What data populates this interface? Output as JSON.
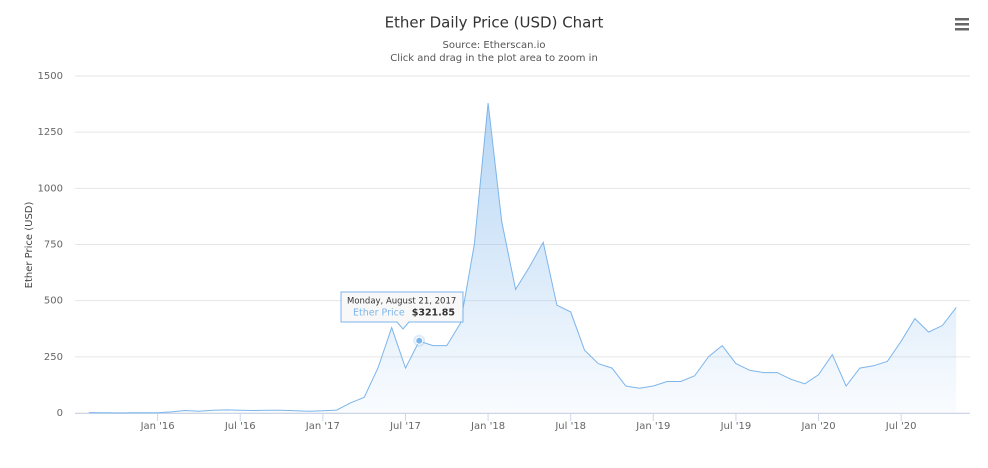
{
  "chart_data": {
    "type": "area",
    "title": "Ether Daily Price (USD) Chart",
    "subtitle": [
      "Source: Etherscan.io",
      "Click and drag in the plot area to zoom in"
    ],
    "y_label": "Ether Price (USD)",
    "x": [
      "2015-08",
      "2015-09",
      "2015-10",
      "2015-11",
      "2015-12",
      "2016-01",
      "2016-02",
      "2016-03",
      "2016-04",
      "2016-05",
      "2016-06",
      "2016-07",
      "2016-08",
      "2016-09",
      "2016-10",
      "2016-11",
      "2016-12",
      "2017-01",
      "2017-02",
      "2017-03",
      "2017-04",
      "2017-05",
      "2017-06",
      "2017-07",
      "2017-08",
      "2017-09",
      "2017-10",
      "2017-11",
      "2017-12",
      "2018-01",
      "2018-02",
      "2018-03",
      "2018-04",
      "2018-05",
      "2018-06",
      "2018-07",
      "2018-08",
      "2018-09",
      "2018-10",
      "2018-11",
      "2018-12",
      "2019-01",
      "2019-02",
      "2019-03",
      "2019-04",
      "2019-05",
      "2019-06",
      "2019-07",
      "2019-08",
      "2019-09",
      "2019-10",
      "2019-11",
      "2019-12",
      "2020-01",
      "2020-02",
      "2020-03",
      "2020-04",
      "2020-05",
      "2020-06",
      "2020-07",
      "2020-08",
      "2020-09",
      "2020-10",
      "2020-11"
    ],
    "series": [
      {
        "name": "Ether Price",
        "color": "#7cb5ec",
        "values": [
          2,
          1,
          0.5,
          1,
          1,
          1,
          5,
          11,
          8,
          12,
          14,
          12,
          11,
          12,
          12,
          10,
          8,
          10,
          13,
          45,
          70,
          200,
          380,
          200,
          320,
          300,
          300,
          400,
          750,
          1380,
          850,
          550,
          650,
          760,
          480,
          450,
          280,
          220,
          200,
          120,
          110,
          120,
          140,
          140,
          165,
          250,
          300,
          220,
          190,
          180,
          180,
          150,
          130,
          170,
          260,
          120,
          200,
          210,
          230,
          320,
          420,
          360,
          390,
          470
        ]
      }
    ],
    "xlim": [
      "2015-07",
      "2020-12"
    ],
    "xticks": [
      {
        "value": "2016-01",
        "label": "Jan '16"
      },
      {
        "value": "2016-07",
        "label": "Jul '16"
      },
      {
        "value": "2017-01",
        "label": "Jan '17"
      },
      {
        "value": "2017-07",
        "label": "Jul '17"
      },
      {
        "value": "2018-01",
        "label": "Jan '18"
      },
      {
        "value": "2018-07",
        "label": "Jul '18"
      },
      {
        "value": "2019-01",
        "label": "Jan '19"
      },
      {
        "value": "2019-07",
        "label": "Jul '19"
      },
      {
        "value": "2020-01",
        "label": "Jan '20"
      },
      {
        "value": "2020-07",
        "label": "Jul '20"
      }
    ],
    "ylim": [
      0,
      1500
    ],
    "yticks": [
      0,
      250,
      500,
      750,
      1000,
      1250,
      1500
    ],
    "grid": true,
    "tooltip": {
      "date": "Monday, August 21, 2017",
      "x": "2017-08",
      "value": 321.85,
      "value_label": "$321.85"
    }
  }
}
